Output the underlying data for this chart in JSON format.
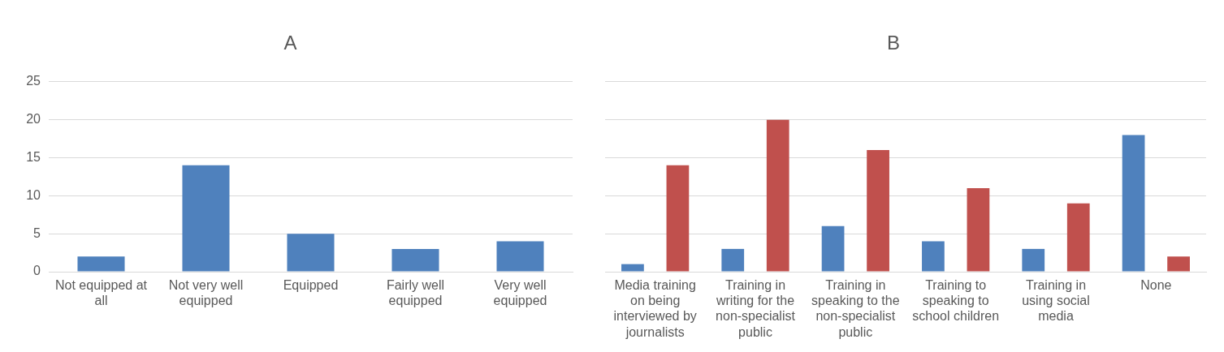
{
  "chart_data": [
    {
      "type": "bar",
      "title": "A",
      "categories": [
        "Not equipped at all",
        "Not very well equipped",
        "Equipped",
        "Fairly well equipped",
        "Very well equipped"
      ],
      "series": [
        {
          "color": "#4f81bd",
          "values": [
            2,
            14,
            5,
            3,
            4
          ]
        }
      ],
      "ylim": [
        0,
        25
      ],
      "yticks": [
        0,
        5,
        10,
        15,
        20,
        25
      ],
      "grid": "y",
      "legend": false
    },
    {
      "type": "bar",
      "title": "B",
      "categories": [
        "Media training on being interviewed by journalists",
        "Training in writing for the non-specialist public",
        "Training in speaking to the non-specialist public",
        "Training to speaking to school children",
        "Training in using social media",
        "None"
      ],
      "series": [
        {
          "color": "#4f81bd",
          "values": [
            1,
            3,
            6,
            4,
            3,
            18
          ]
        },
        {
          "color": "#c0504d",
          "values": [
            14,
            20,
            16,
            11,
            9,
            2
          ]
        }
      ],
      "ylim": [
        0,
        25
      ],
      "yticks": [
        0,
        5,
        10,
        15,
        20,
        25
      ],
      "grid": "y",
      "legend": false,
      "tick_labels": "x"
    }
  ]
}
